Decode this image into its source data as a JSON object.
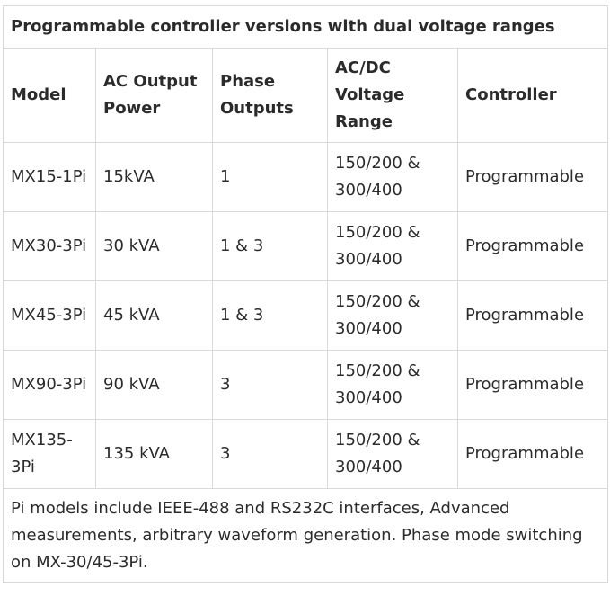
{
  "table": {
    "caption": "Programmable controller versions with dual voltage ranges",
    "headers": {
      "model": "Model",
      "ac_output_power": "AC Output Power",
      "phase_outputs": "Phase Outputs",
      "voltage_range": "AC/DC Voltage Range",
      "controller": "Controller"
    },
    "rows": [
      {
        "model": "MX15-1Pi",
        "power": "15kVA",
        "phase": "1",
        "voltage": "150/200 & 300/400",
        "controller": "Programmable"
      },
      {
        "model": "MX30-3Pi",
        "power": "30 kVA",
        "phase": "1 & 3",
        "voltage": "150/200 & 300/400",
        "controller": "Programmable"
      },
      {
        "model": "MX45-3Pi",
        "power": "45 kVA",
        "phase": "1 & 3",
        "voltage": "150/200 & 300/400",
        "controller": "Programmable"
      },
      {
        "model": "MX90-3Pi",
        "power": "90 kVA",
        "phase": "3",
        "voltage": "150/200 & 300/400",
        "controller": "Programmable"
      },
      {
        "model": "MX135-3Pi",
        "power": "135 kVA",
        "phase": "3",
        "voltage": "150/200 & 300/400",
        "controller": "Programmable"
      }
    ],
    "footnote": "Pi models include IEEE-488 and RS232C interfaces, Advanced measurements, arbitrary waveform generation. Phase mode switching on MX-30/45-3Pi."
  }
}
